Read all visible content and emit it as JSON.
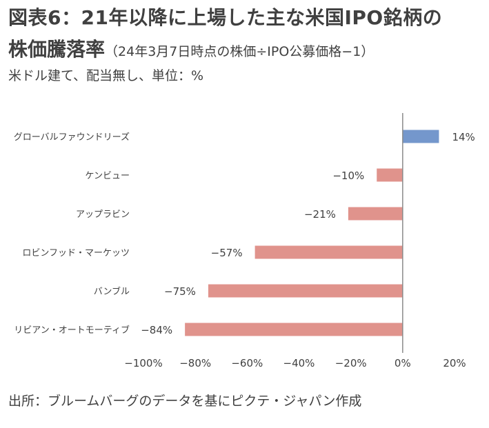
{
  "title_line1": "図表6：21年以降に上場した主な米国IPO銘柄の",
  "title_line2": "株価騰落率",
  "title_note": "（24年3月7日時点の株価÷IPO公募価格−1）",
  "subtitle": "米ドル建て、配当無し、単位：%",
  "source": "出所：ブルームバーグのデータを基にピクテ・ジャパン作成",
  "colors": {
    "positive": "#7497cc",
    "negative": "#e0938c",
    "axis": "#8a8a8a",
    "text": "#404040"
  },
  "chart_data": {
    "type": "bar",
    "orientation": "horizontal",
    "categories": [
      "グローバルファウンドリーズ",
      "ケンビュー",
      "アップラビン",
      "ロビンフッド・マーケッツ",
      "バンブル",
      "リビアン・オートモーティブ"
    ],
    "values": [
      14,
      -10,
      -21,
      -57,
      -75,
      -84
    ],
    "value_labels": [
      "14%",
      "−10%",
      "−21%",
      "−57%",
      "−75%",
      "−84%"
    ],
    "xlim": [
      -100,
      20
    ],
    "xticks": [
      -100,
      -80,
      -60,
      -40,
      -20,
      0,
      20
    ],
    "xtick_labels": [
      "−100%",
      "−80%",
      "−60%",
      "−40%",
      "−20%",
      "0%",
      "20%"
    ],
    "grid": false
  }
}
